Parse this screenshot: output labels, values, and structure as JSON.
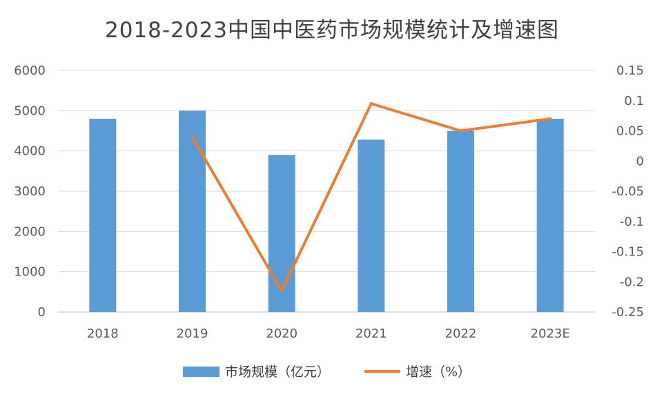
{
  "chart_data": {
    "type": "bar+line",
    "title": "2018-2023中国中医药市场规模统计及增速图",
    "categories": [
      "2018",
      "2019",
      "2020",
      "2021",
      "2022",
      "2023E"
    ],
    "series": [
      {
        "name": "市场规模（亿元）",
        "type": "bar",
        "axis": "left",
        "color": "#5B9BD5",
        "values": [
          4800,
          5000,
          3900,
          4280,
          4500,
          4800
        ]
      },
      {
        "name": "增速（%）",
        "type": "line",
        "axis": "right",
        "color": "#ED7D31",
        "values": [
          null,
          0.04,
          -0.215,
          0.095,
          0.05,
          0.07
        ]
      }
    ],
    "y_left": {
      "min": 0,
      "max": 6000,
      "ticks": [
        "0",
        "1000",
        "2000",
        "3000",
        "4000",
        "5000",
        "6000"
      ]
    },
    "y_right": {
      "min": -0.25,
      "max": 0.15,
      "ticks": [
        "-0.25",
        "-0.2",
        "-0.15",
        "-0.1",
        "-0.05",
        "0",
        "0.05",
        "0.1",
        "0.15"
      ]
    },
    "grid": true,
    "legend": "bottom"
  }
}
